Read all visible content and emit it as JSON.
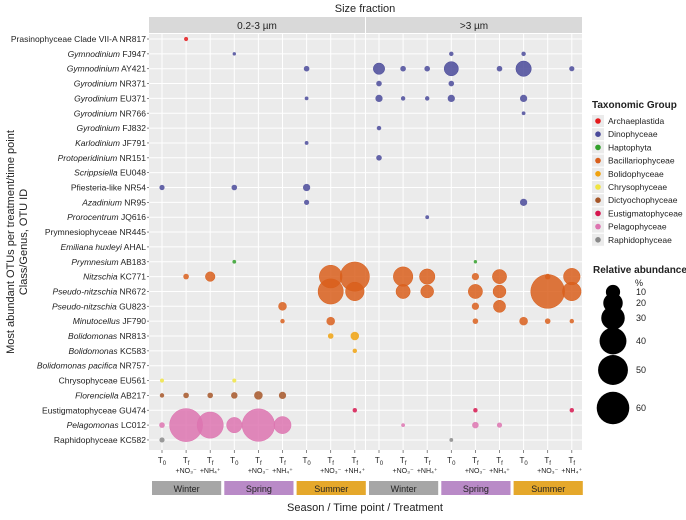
{
  "chart_data": {
    "type": "scatter",
    "subtype": "bubble",
    "title": "Size fraction",
    "xlabel": "Season / Time point / Treatment",
    "ylabel": "Most abundant OTUs per treatment/time point\nClass/Genus, OTU ID",
    "facets": [
      "0.2-3 µm",
      ">3 µm"
    ],
    "seasons": [
      {
        "name": "Winter",
        "color": "#a6a6a6"
      },
      {
        "name": "Spring",
        "color": "#b98ac7"
      },
      {
        "name": "Summer",
        "color": "#e5a82b"
      }
    ],
    "x_ticks": [
      {
        "main": "T",
        "sub": "0",
        "extra": ""
      },
      {
        "main": "T",
        "sub": "f",
        "extra": "+NO₃⁻"
      },
      {
        "main": "T",
        "sub": "f",
        "extra": "+NH₄⁺"
      },
      {
        "main": "T",
        "sub": "0",
        "extra": ""
      },
      {
        "main": "T",
        "sub": "f",
        "extra": "+NO₃⁻"
      },
      {
        "main": "T",
        "sub": "f",
        "extra": "+NH₄⁺"
      },
      {
        "main": "T",
        "sub": "0",
        "extra": ""
      },
      {
        "main": "T",
        "sub": "f",
        "extra": "+NO₃⁻"
      },
      {
        "main": "T",
        "sub": "f",
        "extra": "+NH₄⁺"
      }
    ],
    "otus": [
      {
        "g": "Prasinophyceae Clade VII-A",
        "id": "NR817",
        "italic": false
      },
      {
        "g": "Gymnodinium",
        "id": "FJ947",
        "italic": true
      },
      {
        "g": "Gymnodinium",
        "id": "AY421",
        "italic": true
      },
      {
        "g": "Gyrodinium",
        "id": "NR371",
        "italic": true
      },
      {
        "g": "Gyrodinium",
        "id": "EU371",
        "italic": true
      },
      {
        "g": "Gyrodinium",
        "id": "NR766",
        "italic": true
      },
      {
        "g": "Gyrodinium",
        "id": "FJ832",
        "italic": true
      },
      {
        "g": "Karlodinium",
        "id": "JF791",
        "italic": true
      },
      {
        "g": "Protoperidinium",
        "id": "NR151",
        "italic": true
      },
      {
        "g": "Scrippsiella",
        "id": "EU048",
        "italic": true
      },
      {
        "g": "Pfiesteria-like",
        "id": "NR54",
        "italic": false
      },
      {
        "g": "Azadinium",
        "id": "NR95",
        "italic": true
      },
      {
        "g": "Prorocentrum",
        "id": "JQ616",
        "italic": true
      },
      {
        "g": "Prymnesiophyceae",
        "id": "NR445",
        "italic": false
      },
      {
        "g": "Emiliana huxleyi",
        "id": "AHAL",
        "italic": true
      },
      {
        "g": "Prymnesium",
        "id": "AB183",
        "italic": true
      },
      {
        "g": "Nitzschia",
        "id": "KC771",
        "italic": true
      },
      {
        "g": "Pseudo-nitzschia",
        "id": "NR672",
        "italic": true
      },
      {
        "g": "Pseudo-nitzschia",
        "id": "GU823",
        "italic": true
      },
      {
        "g": "Minutocellus",
        "id": "JF790",
        "italic": true
      },
      {
        "g": "Bolidomonas",
        "id": "NR813",
        "italic": true
      },
      {
        "g": "Bolidomonas",
        "id": "KC583",
        "italic": true
      },
      {
        "g": "Bolidomonas pacifica",
        "id": "NR757",
        "italic": true
      },
      {
        "g": "Chrysophyceae",
        "id": "EU561",
        "italic": false
      },
      {
        "g": "Florenciella",
        "id": "AB217",
        "italic": true
      },
      {
        "g": "Eustigmatophyceae",
        "id": "GU474",
        "italic": false
      },
      {
        "g": "Pelagomonas",
        "id": "LC012",
        "italic": true
      },
      {
        "g": "Raphidophyceae",
        "id": "KC582",
        "italic": false
      }
    ],
    "legend_groups": {
      "title": "Taxonomic Group",
      "items": [
        {
          "name": "Archaeplastida",
          "color": "#e41a1c"
        },
        {
          "name": "Dinophyceae",
          "color": "#4a4a9a"
        },
        {
          "name": "Haptophyta",
          "color": "#33a02c"
        },
        {
          "name": "Bacillariophyceae",
          "color": "#d95f1c"
        },
        {
          "name": "Bolidophyceae",
          "color": "#f0a20f"
        },
        {
          "name": "Chrysophyceae",
          "color": "#f0e442"
        },
        {
          "name": "Dictyochophyceae",
          "color": "#a65628"
        },
        {
          "name": "Eustigmatophyceae",
          "color": "#d6164f"
        },
        {
          "name": "Pelagophyceae",
          "color": "#dd74b0"
        },
        {
          "name": "Raphidophyceae",
          "color": "#8a8a8a"
        }
      ]
    },
    "legend_size": {
      "title": "Relative abundance",
      "unit": "%",
      "values": [
        10,
        20,
        30,
        40,
        50,
        60
      ]
    },
    "points": [
      {
        "f": 0,
        "x": 1,
        "y": 0,
        "v": 0.4,
        "c": "Archaeplastida"
      },
      {
        "f": 0,
        "x": 3,
        "y": 1,
        "v": 0.2,
        "c": "Dinophyceae"
      },
      {
        "f": 0,
        "x": 6,
        "y": 2,
        "v": 1,
        "c": "Dinophyceae"
      },
      {
        "f": 0,
        "x": 6,
        "y": 4,
        "v": 0.3,
        "c": "Dinophyceae"
      },
      {
        "f": 0,
        "x": 6,
        "y": 7,
        "v": 0.3,
        "c": "Dinophyceae"
      },
      {
        "f": 0,
        "x": 0,
        "y": 10,
        "v": 0.8,
        "c": "Dinophyceae"
      },
      {
        "f": 0,
        "x": 3,
        "y": 10,
        "v": 1,
        "c": "Dinophyceae"
      },
      {
        "f": 0,
        "x": 6,
        "y": 10,
        "v": 2,
        "c": "Dinophyceae"
      },
      {
        "f": 0,
        "x": 6,
        "y": 11,
        "v": 0.8,
        "c": "Dinophyceae"
      },
      {
        "f": 0,
        "x": 3,
        "y": 15,
        "v": 0.3,
        "c": "Haptophyta"
      },
      {
        "f": 0,
        "x": 1,
        "y": 16,
        "v": 1,
        "c": "Bacillariophyceae"
      },
      {
        "f": 0,
        "x": 2,
        "y": 16,
        "v": 4,
        "c": "Bacillariophyceae"
      },
      {
        "f": 0,
        "x": 7,
        "y": 16,
        "v": 28,
        "c": "Bacillariophyceae"
      },
      {
        "f": 0,
        "x": 8,
        "y": 16,
        "v": 48,
        "c": "Bacillariophyceae"
      },
      {
        "f": 0,
        "x": 7,
        "y": 17,
        "v": 35,
        "c": "Bacillariophyceae"
      },
      {
        "f": 0,
        "x": 8,
        "y": 17,
        "v": 18,
        "c": "Bacillariophyceae"
      },
      {
        "f": 0,
        "x": 5,
        "y": 18,
        "v": 3,
        "c": "Bacillariophyceae"
      },
      {
        "f": 0,
        "x": 5,
        "y": 19,
        "v": 0.5,
        "c": "Bacillariophyceae"
      },
      {
        "f": 0,
        "x": 7,
        "y": 19,
        "v": 3,
        "c": "Bacillariophyceae"
      },
      {
        "f": 0,
        "x": 7,
        "y": 20,
        "v": 1,
        "c": "Bolidophyceae"
      },
      {
        "f": 0,
        "x": 8,
        "y": 20,
        "v": 3,
        "c": "Bolidophyceae"
      },
      {
        "f": 0,
        "x": 8,
        "y": 21,
        "v": 0.5,
        "c": "Bolidophyceae"
      },
      {
        "f": 0,
        "x": 0,
        "y": 23,
        "v": 0.4,
        "c": "Chrysophyceae"
      },
      {
        "f": 0,
        "x": 3,
        "y": 23,
        "v": 0.4,
        "c": "Chrysophyceae"
      },
      {
        "f": 0,
        "x": 0,
        "y": 24,
        "v": 0.5,
        "c": "Dictyochophyceae"
      },
      {
        "f": 0,
        "x": 1,
        "y": 24,
        "v": 1,
        "c": "Dictyochophyceae"
      },
      {
        "f": 0,
        "x": 2,
        "y": 24,
        "v": 1,
        "c": "Dictyochophyceae"
      },
      {
        "f": 0,
        "x": 3,
        "y": 24,
        "v": 1.5,
        "c": "Dictyochophyceae"
      },
      {
        "f": 0,
        "x": 4,
        "y": 24,
        "v": 3,
        "c": "Dictyochophyceae"
      },
      {
        "f": 0,
        "x": 5,
        "y": 24,
        "v": 2,
        "c": "Dictyochophyceae"
      },
      {
        "f": 0,
        "x": 8,
        "y": 25,
        "v": 0.5,
        "c": "Eustigmatophyceae"
      },
      {
        "f": 0,
        "x": 0,
        "y": 26,
        "v": 1,
        "c": "Pelagophyceae"
      },
      {
        "f": 0,
        "x": 1,
        "y": 26,
        "v": 62,
        "c": "Pelagophyceae"
      },
      {
        "f": 0,
        "x": 2,
        "y": 26,
        "v": 38,
        "c": "Pelagophyceae"
      },
      {
        "f": 0,
        "x": 3,
        "y": 26,
        "v": 12,
        "c": "Pelagophyceae"
      },
      {
        "f": 0,
        "x": 4,
        "y": 26,
        "v": 60,
        "c": "Pelagophyceae"
      },
      {
        "f": 0,
        "x": 5,
        "y": 26,
        "v": 15,
        "c": "Pelagophyceae"
      },
      {
        "f": 0,
        "x": 0,
        "y": 27,
        "v": 0.8,
        "c": "Raphidophyceae"
      },
      {
        "f": 1,
        "x": 3,
        "y": 1,
        "v": 0.5,
        "c": "Dinophyceae"
      },
      {
        "f": 1,
        "x": 6,
        "y": 1,
        "v": 0.5,
        "c": "Dinophyceae"
      },
      {
        "f": 1,
        "x": 0,
        "y": 2,
        "v": 6,
        "c": "Dinophyceae"
      },
      {
        "f": 1,
        "x": 1,
        "y": 2,
        "v": 1,
        "c": "Dinophyceae"
      },
      {
        "f": 1,
        "x": 2,
        "y": 2,
        "v": 1,
        "c": "Dinophyceae"
      },
      {
        "f": 1,
        "x": 3,
        "y": 2,
        "v": 10,
        "c": "Dinophyceae"
      },
      {
        "f": 1,
        "x": 5,
        "y": 2,
        "v": 1,
        "c": "Dinophyceae"
      },
      {
        "f": 1,
        "x": 6,
        "y": 2,
        "v": 12,
        "c": "Dinophyceae"
      },
      {
        "f": 1,
        "x": 8,
        "y": 2,
        "v": 0.8,
        "c": "Dinophyceae"
      },
      {
        "f": 1,
        "x": 0,
        "y": 3,
        "v": 1,
        "c": "Dinophyceae"
      },
      {
        "f": 1,
        "x": 3,
        "y": 3,
        "v": 1,
        "c": "Dinophyceae"
      },
      {
        "f": 1,
        "x": 0,
        "y": 4,
        "v": 2,
        "c": "Dinophyceae"
      },
      {
        "f": 1,
        "x": 1,
        "y": 4,
        "v": 0.5,
        "c": "Dinophyceae"
      },
      {
        "f": 1,
        "x": 2,
        "y": 4,
        "v": 0.5,
        "c": "Dinophyceae"
      },
      {
        "f": 1,
        "x": 3,
        "y": 4,
        "v": 2,
        "c": "Dinophyceae"
      },
      {
        "f": 1,
        "x": 6,
        "y": 4,
        "v": 2,
        "c": "Dinophyceae"
      },
      {
        "f": 1,
        "x": 6,
        "y": 5,
        "v": 0.3,
        "c": "Dinophyceae"
      },
      {
        "f": 1,
        "x": 0,
        "y": 6,
        "v": 0.5,
        "c": "Dinophyceae"
      },
      {
        "f": 1,
        "x": 0,
        "y": 8,
        "v": 1,
        "c": "Dinophyceae"
      },
      {
        "f": 1,
        "x": 6,
        "y": 11,
        "v": 2,
        "c": "Dinophyceae"
      },
      {
        "f": 1,
        "x": 2,
        "y": 12,
        "v": 0.3,
        "c": "Dinophyceae"
      },
      {
        "f": 1,
        "x": 4,
        "y": 15,
        "v": 0.2,
        "c": "Haptophyta"
      },
      {
        "f": 1,
        "x": 1,
        "y": 16,
        "v": 20,
        "c": "Bacillariophyceae"
      },
      {
        "f": 1,
        "x": 2,
        "y": 16,
        "v": 12,
        "c": "Bacillariophyceae"
      },
      {
        "f": 1,
        "x": 4,
        "y": 16,
        "v": 2,
        "c": "Bacillariophyceae"
      },
      {
        "f": 1,
        "x": 5,
        "y": 16,
        "v": 10,
        "c": "Bacillariophyceae"
      },
      {
        "f": 1,
        "x": 8,
        "y": 16,
        "v": 14,
        "c": "Bacillariophyceae"
      },
      {
        "f": 1,
        "x": 7,
        "y": 16,
        "v": 1,
        "c": "Bacillariophyceae"
      },
      {
        "f": 1,
        "x": 1,
        "y": 17,
        "v": 10,
        "c": "Bacillariophyceae"
      },
      {
        "f": 1,
        "x": 2,
        "y": 17,
        "v": 8,
        "c": "Bacillariophyceae"
      },
      {
        "f": 1,
        "x": 4,
        "y": 17,
        "v": 10,
        "c": "Bacillariophyceae"
      },
      {
        "f": 1,
        "x": 5,
        "y": 17,
        "v": 8,
        "c": "Bacillariophyceae"
      },
      {
        "f": 1,
        "x": 7,
        "y": 17,
        "v": 65,
        "c": "Bacillariophyceae"
      },
      {
        "f": 1,
        "x": 8,
        "y": 17,
        "v": 18,
        "c": "Bacillariophyceae"
      },
      {
        "f": 1,
        "x": 4,
        "y": 18,
        "v": 2,
        "c": "Bacillariophyceae"
      },
      {
        "f": 1,
        "x": 5,
        "y": 18,
        "v": 7,
        "c": "Bacillariophyceae"
      },
      {
        "f": 1,
        "x": 4,
        "y": 19,
        "v": 1,
        "c": "Bacillariophyceae"
      },
      {
        "f": 1,
        "x": 6,
        "y": 19,
        "v": 3,
        "c": "Bacillariophyceae"
      },
      {
        "f": 1,
        "x": 7,
        "y": 19,
        "v": 1,
        "c": "Bacillariophyceae"
      },
      {
        "f": 1,
        "x": 8,
        "y": 19,
        "v": 0.5,
        "c": "Bacillariophyceae"
      },
      {
        "f": 1,
        "x": 4,
        "y": 25,
        "v": 0.5,
        "c": "Eustigmatophyceae"
      },
      {
        "f": 1,
        "x": 8,
        "y": 25,
        "v": 0.5,
        "c": "Eustigmatophyceae"
      },
      {
        "f": 1,
        "x": 1,
        "y": 26,
        "v": 0.3,
        "c": "Pelagophyceae"
      },
      {
        "f": 1,
        "x": 4,
        "y": 26,
        "v": 1.5,
        "c": "Pelagophyceae"
      },
      {
        "f": 1,
        "x": 5,
        "y": 26,
        "v": 0.8,
        "c": "Pelagophyceae"
      },
      {
        "f": 1,
        "x": 3,
        "y": 27,
        "v": 0.3,
        "c": "Raphidophyceae"
      }
    ]
  }
}
